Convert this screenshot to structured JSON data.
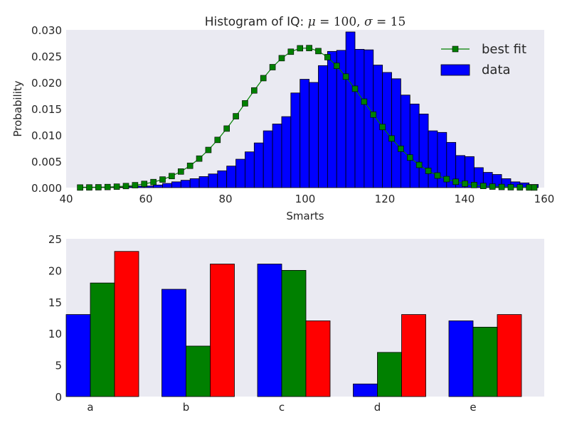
{
  "chart_data": [
    {
      "type": "bar",
      "subtype": "histogram-with-line",
      "title_prefix": "Histogram of IQ: ",
      "title_mu": "μ",
      "title_mu_value": " = 100, ",
      "title_sigma": "σ",
      "title_sigma_value": " = 15",
      "xlabel": "Smarts",
      "ylabel": "Probability",
      "xlim": [
        40,
        160
      ],
      "ylim": [
        0,
        0.03
      ],
      "xticks": [
        "40",
        "60",
        "80",
        "100",
        "120",
        "140",
        "160"
      ],
      "yticks": [
        "0.000",
        "0.005",
        "0.010",
        "0.015",
        "0.020",
        "0.025",
        "0.030"
      ],
      "grid": false,
      "legend_position": "top-right",
      "legend": {
        "line_label": "best fit",
        "bar_label": "data"
      },
      "colors": {
        "background": "#eaeaf2",
        "bars": "#0000ff",
        "bar_edge": "#000000",
        "line": "#008000",
        "marker": "#008000"
      },
      "bins": {
        "edges_start": 43.5,
        "bin_width": 2.3,
        "values": [
          0.0001,
          0.0001,
          0.0001,
          0.0001,
          0.0001,
          0.0002,
          0.0003,
          0.0003,
          0.0005,
          0.0008,
          0.0011,
          0.0014,
          0.0017,
          0.0021,
          0.0026,
          0.0032,
          0.0041,
          0.0054,
          0.0068,
          0.0085,
          0.0108,
          0.0121,
          0.0135,
          0.018,
          0.0206,
          0.02,
          0.0232,
          0.0259,
          0.0261,
          0.0296,
          0.0263,
          0.0262,
          0.0233,
          0.0219,
          0.0207,
          0.0176,
          0.0159,
          0.014,
          0.0108,
          0.0105,
          0.0086,
          0.0061,
          0.0059,
          0.0038,
          0.0029,
          0.0025,
          0.0017,
          0.0011,
          0.0009,
          0.0006
        ]
      },
      "best_fit": {
        "mu": 100,
        "sigma": 15,
        "x": [
          43.5,
          45.8,
          48.1,
          50.4,
          52.7,
          55.0,
          57.3,
          59.6,
          61.9,
          64.2,
          66.5,
          68.8,
          71.1,
          73.4,
          75.7,
          78.0,
          80.3,
          82.6,
          84.9,
          87.2,
          89.5,
          91.8,
          94.1,
          96.4,
          98.7,
          101.0,
          103.3,
          105.6,
          107.9,
          110.2,
          112.5,
          114.8,
          117.1,
          119.4,
          121.7,
          124.0,
          126.3,
          128.6,
          130.9,
          133.2,
          135.5,
          137.8,
          140.1,
          142.4,
          144.7,
          147.0,
          149.3,
          151.6,
          153.9,
          156.2,
          157.5
        ]
      }
    },
    {
      "type": "bar",
      "subtype": "grouped",
      "categories": [
        "a",
        "b",
        "c",
        "d",
        "e"
      ],
      "series": [
        {
          "color": "#0000ff",
          "values": [
            13,
            17,
            21,
            2,
            12
          ]
        },
        {
          "color": "#008000",
          "values": [
            18,
            8,
            20,
            7,
            11
          ]
        },
        {
          "color": "#ff0000",
          "values": [
            23,
            21,
            12,
            13,
            13
          ]
        }
      ],
      "ylim": [
        0,
        25
      ],
      "yticks": [
        "0",
        "5",
        "10",
        "15",
        "20",
        "25"
      ],
      "grid": false,
      "colors": {
        "background": "#eaeaf2",
        "bar_edge": "#000000"
      }
    }
  ]
}
